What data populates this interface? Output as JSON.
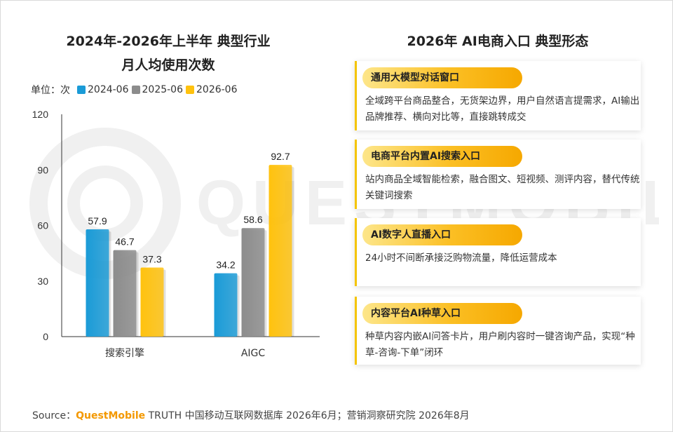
{
  "left": {
    "title_line1": "2024年-2026年上半年 典型行业",
    "title_line2": "月人均使用次数"
  },
  "chart_data": {
    "type": "bar",
    "unit_label": "单位：次",
    "categories": [
      "搜索引擎",
      "AIGC"
    ],
    "series": [
      {
        "name": "2024-06",
        "values": [
          57.9,
          34.2
        ],
        "color": "#1a9bd7"
      },
      {
        "name": "2025-06",
        "values": [
          46.7,
          58.6
        ],
        "color": "#8c8c8c"
      },
      {
        "name": "2026-06",
        "values": [
          37.3,
          92.7
        ],
        "color": "#ffc20e"
      }
    ],
    "yticks": [
      "0",
      "30",
      "60",
      "90",
      "120"
    ],
    "ylim": [
      0,
      120
    ],
    "grid": false,
    "legend_position": "top-left"
  },
  "right": {
    "title": "2026年 AI电商入口 典型形态",
    "cards": [
      {
        "tag": "通用大模型对话窗口",
        "desc": "全域跨平台商品整合，无货架边界，用户自然语言提需求，AI输出品牌推荐、横向对比等，直接跳转成交"
      },
      {
        "tag": "电商平台内置AI搜索入口",
        "desc": "站内商品全域智能检索，融合图文、短视频、测评内容，替代传统关键词搜索"
      },
      {
        "tag": "AI数字人直播入口",
        "desc": "24小时不间断承接泛购物流量，降低运营成本"
      },
      {
        "tag": "内容平台AI种草入口",
        "desc": "种草内容内嵌AI问答卡片，用户刷内容时一键咨询产品，实现“种草-咨询-下单”闭环"
      }
    ]
  },
  "footer": {
    "source_prefix": "Source：",
    "brand": "QuestMobile",
    "source_rest": " TRUTH 中国移动互联网数据库 2026年6月；营销洞察研究院 2026年8月"
  }
}
